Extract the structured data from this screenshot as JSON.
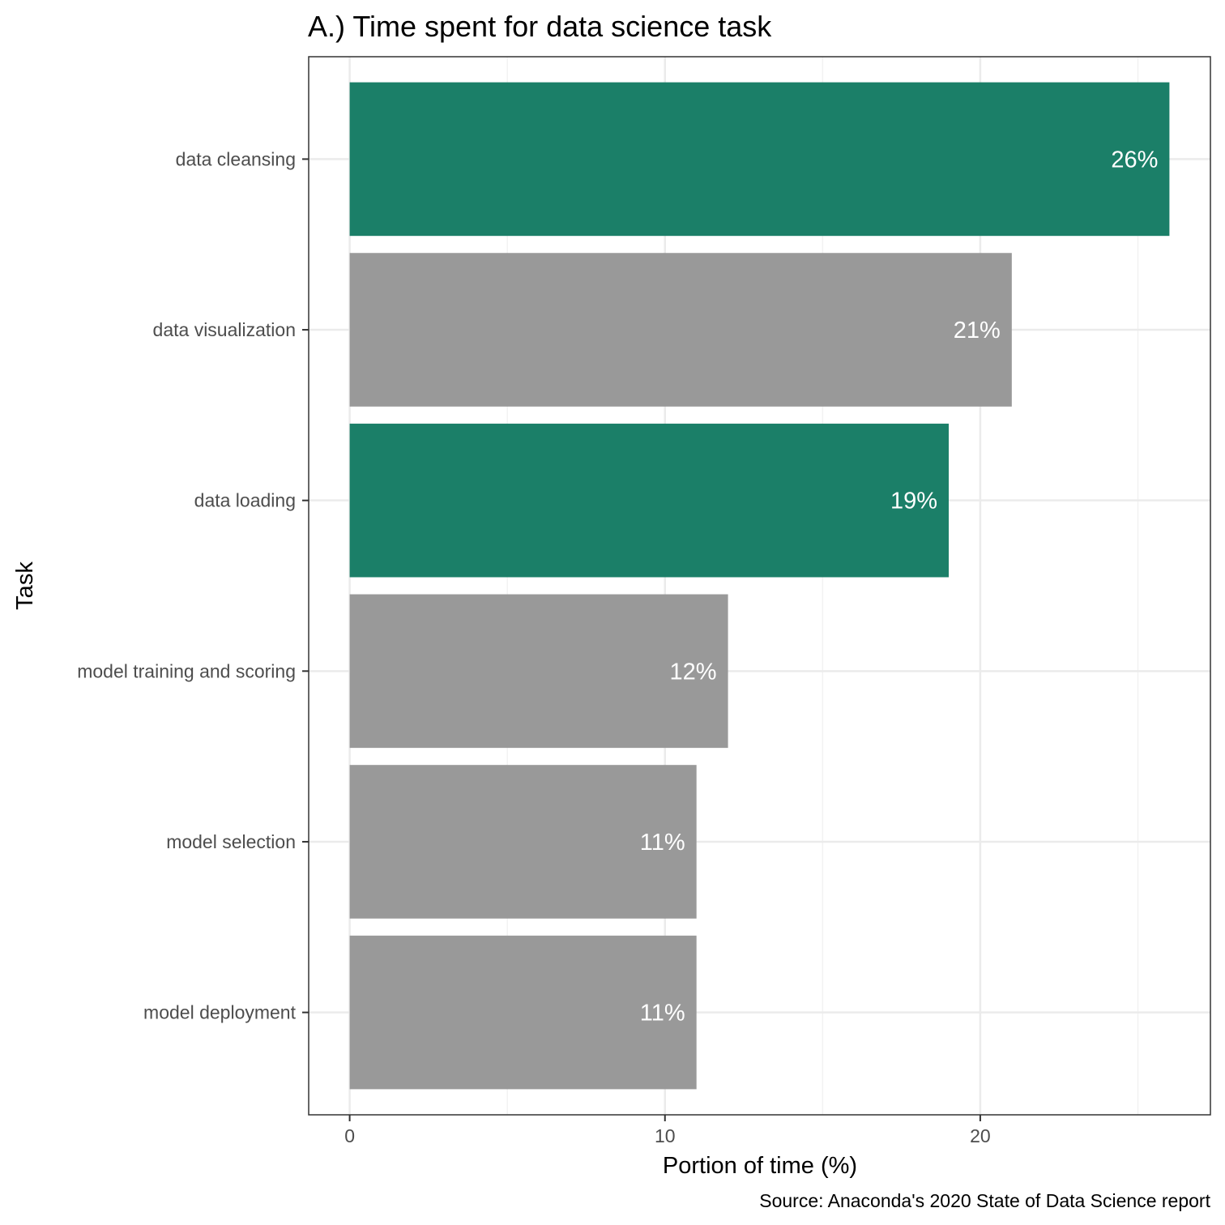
{
  "chart_data": {
    "type": "bar",
    "orientation": "horizontal",
    "title": "A.) Time spent for data science task",
    "xlabel": "Portion of time (%)",
    "ylabel": "Task",
    "caption": "Source: Anaconda's 2020 State of Data Science report",
    "categories": [
      "data cleansing",
      "data visualization",
      "data loading",
      "model training and scoring",
      "model selection",
      "model deployment"
    ],
    "values": [
      26,
      21,
      19,
      12,
      11,
      11
    ],
    "bar_labels": [
      "26%",
      "21%",
      "19%",
      "12%",
      "11%",
      "11%"
    ],
    "highlighted": [
      true,
      false,
      true,
      false,
      false,
      false
    ],
    "xlim": [
      -1.3,
      27.3
    ],
    "xticks": [
      0,
      10,
      20
    ],
    "xtick_labels": [
      "0",
      "10",
      "20"
    ],
    "grid": true,
    "legend": "none",
    "colors": {
      "highlight": "#1b7f68",
      "default": "#999999",
      "grid_major": "#ebebeb",
      "grid_minor": "#f2f2f2",
      "panel_border": "#333333"
    }
  }
}
